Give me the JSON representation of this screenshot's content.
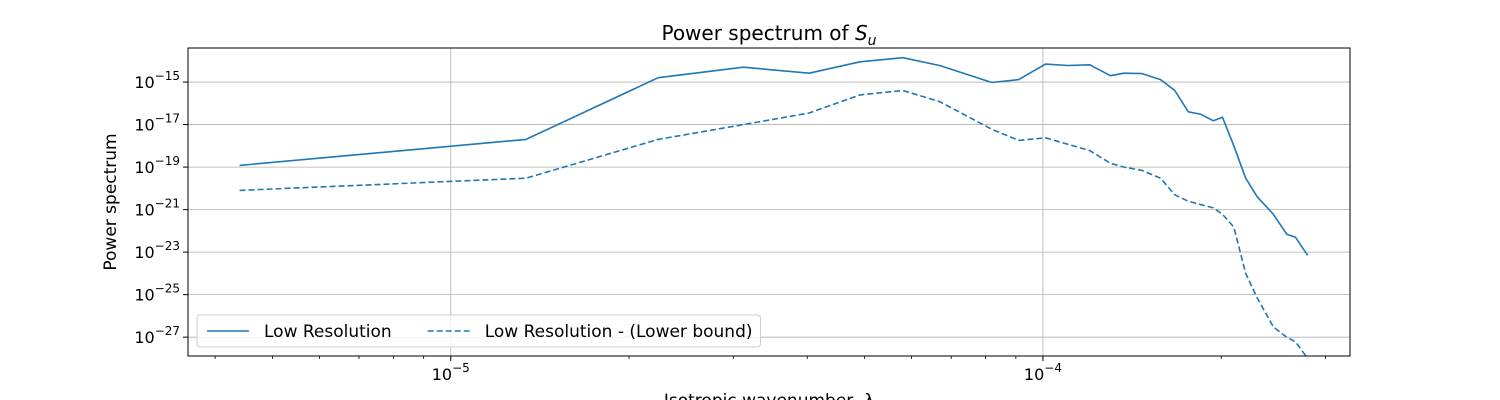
{
  "chart_data": {
    "type": "line",
    "title_text": "Power spectrum of ",
    "title_symbol": "S",
    "title_subscript": "u",
    "xlabel": "Isotropic wavenumber, λ",
    "ylabel": "Power spectrum",
    "xscale": "log",
    "yscale": "log",
    "xlim": [
      3.6e-06,
      0.00033
    ],
    "ylim": [
      1.3e-28,
      4e-14
    ],
    "grid": true,
    "legend_position": "lower-left",
    "x_tick_labels": [
      {
        "value": 1e-05,
        "base": "10",
        "exp": "−5"
      },
      {
        "value": 0.0001,
        "base": "10",
        "exp": "−4"
      }
    ],
    "y_tick_labels": [
      {
        "value": 1e-15,
        "base": "10",
        "exp": "−15"
      },
      {
        "value": 1e-17,
        "base": "10",
        "exp": "−17"
      },
      {
        "value": 1e-19,
        "base": "10",
        "exp": "−19"
      },
      {
        "value": 1e-21,
        "base": "10",
        "exp": "−21"
      },
      {
        "value": 1e-23,
        "base": "10",
        "exp": "−23"
      },
      {
        "value": 1e-25,
        "base": "10",
        "exp": "−25"
      },
      {
        "value": 1e-27,
        "base": "10",
        "exp": "−27"
      }
    ],
    "series": [
      {
        "name": "Low Resolution",
        "color": "#1f77b4",
        "linestyle": "solid",
        "x": [
          4.4e-06,
          1.34e-05,
          2.24e-05,
          3.12e-05,
          4.03e-05,
          4.91e-05,
          5.8e-05,
          6.69e-05,
          8.2e-05,
          9.1e-05,
          0.000101,
          0.00011,
          0.00012,
          0.00013,
          0.000137,
          0.000147,
          0.000158,
          0.000167,
          0.000176,
          0.000185,
          0.000194,
          0.000201,
          0.00021,
          0.00022,
          0.00023,
          0.000245,
          0.000258,
          0.000267,
          0.00028
        ],
        "y": [
          1.2e-19,
          2e-18,
          1.6e-15,
          5e-15,
          2.6e-15,
          9e-15,
          1.4e-14,
          6e-15,
          9.5e-16,
          1.3e-15,
          7e-15,
          6e-15,
          6.5e-15,
          2e-15,
          2.6e-15,
          2.5e-15,
          1.3e-15,
          4e-16,
          4e-17,
          3e-17,
          1.5e-17,
          2.2e-17,
          1e-18,
          3e-20,
          4e-21,
          6e-22,
          7e-23,
          5e-23,
          7e-24
        ]
      },
      {
        "name": "Low Resolution - (Lower bound)",
        "color": "#1f77b4",
        "linestyle": "dashed",
        "x": [
          4.4e-06,
          1.34e-05,
          2.24e-05,
          3.12e-05,
          4.03e-05,
          4.91e-05,
          5.8e-05,
          6.69e-05,
          8.2e-05,
          9.1e-05,
          0.000101,
          0.00011,
          0.00012,
          0.00013,
          0.000137,
          0.000147,
          0.000158,
          0.000167,
          0.000176,
          0.000185,
          0.000194,
          0.000201,
          0.00021,
          0.00022,
          0.00023,
          0.000245,
          0.000258,
          0.000267,
          0.00028
        ],
        "y": [
          8e-21,
          3e-20,
          2e-18,
          1e-17,
          3.5e-17,
          2.5e-16,
          4e-16,
          1.2e-16,
          6e-18,
          1.8e-18,
          2.4e-18,
          1.2e-18,
          6e-19,
          1.5e-19,
          1e-19,
          7e-20,
          3e-20,
          5e-21,
          2.5e-21,
          1.7e-21,
          1.2e-21,
          6e-22,
          1.5e-22,
          1e-24,
          7e-26,
          3e-27,
          1e-27,
          6e-28,
          1e-28
        ]
      }
    ]
  }
}
